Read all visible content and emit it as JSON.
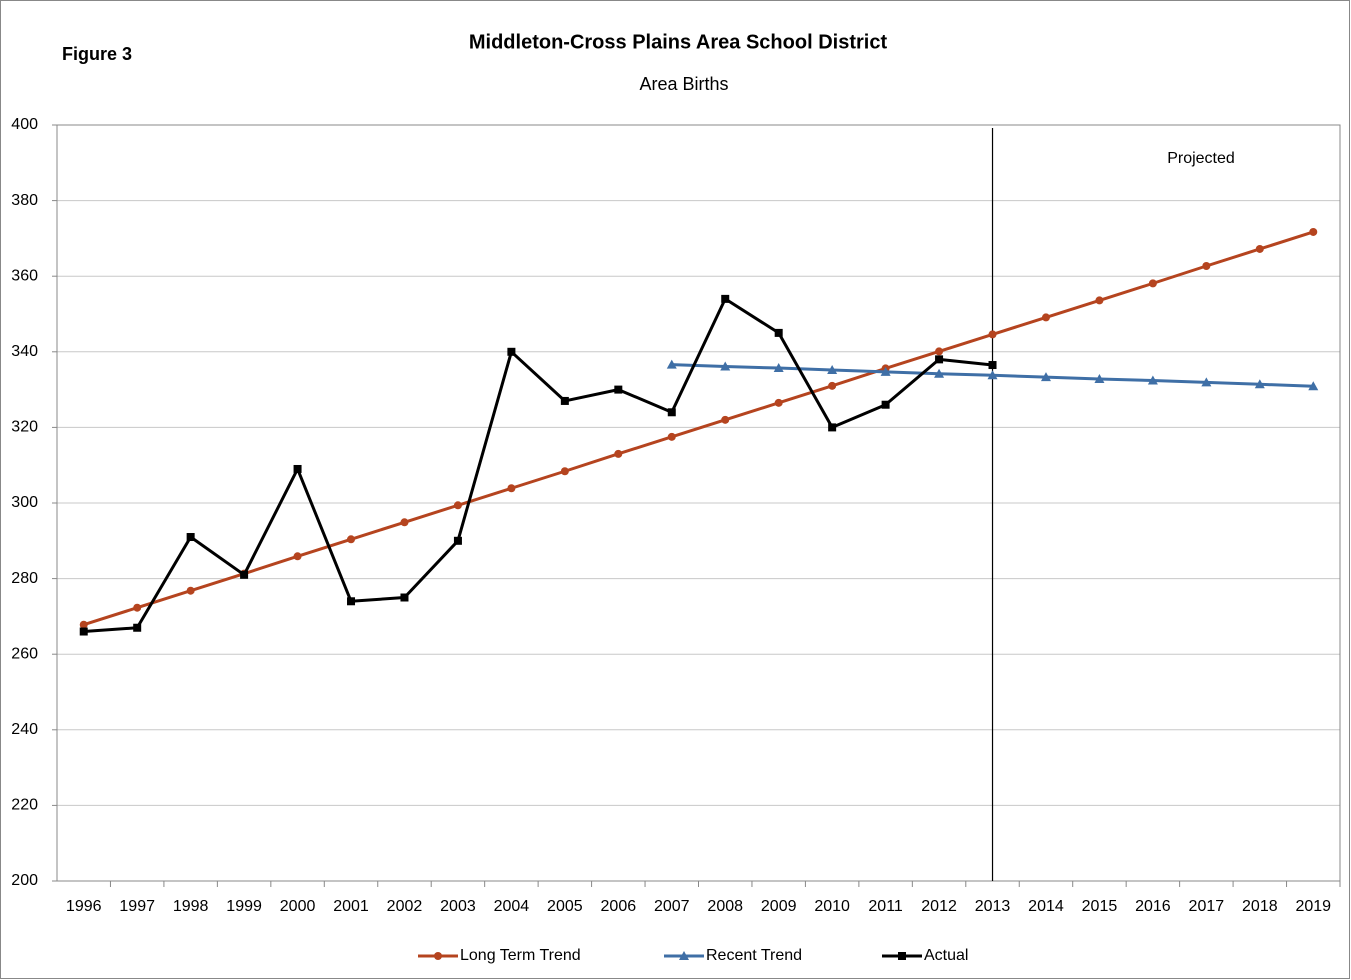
{
  "chart_data": {
    "type": "line",
    "figure_label": "Figure 3",
    "title": "Middleton-Cross Plains Area School District",
    "subtitle": "Area Births",
    "categories": [
      "1996",
      "1997",
      "1998",
      "1999",
      "2000",
      "2001",
      "2002",
      "2003",
      "2004",
      "2005",
      "2006",
      "2007",
      "2008",
      "2009",
      "2010",
      "2011",
      "2012",
      "2013",
      "2014",
      "2015",
      "2016",
      "2017",
      "2018",
      "2019"
    ],
    "series": [
      {
        "name": "Long Term Trend",
        "color": "#b5441f",
        "marker": "circle",
        "values": [
          267.8,
          272.3,
          276.8,
          281.3,
          285.9,
          290.4,
          294.9,
          299.4,
          303.9,
          308.4,
          313.0,
          317.5,
          322.0,
          326.5,
          331.0,
          335.6,
          340.1,
          344.6,
          349.1,
          353.6,
          358.1,
          362.7,
          367.2,
          371.7
        ]
      },
      {
        "name": "Recent Trend",
        "color": "#3f6fa6",
        "marker": "triangle",
        "values": [
          null,
          null,
          null,
          null,
          null,
          null,
          null,
          null,
          null,
          null,
          null,
          336.6,
          336.1,
          335.7,
          335.2,
          334.7,
          334.2,
          333.8,
          333.3,
          332.8,
          332.4,
          331.9,
          331.4,
          330.9
        ]
      },
      {
        "name": "Actual",
        "color": "#000000",
        "marker": "square",
        "values": [
          266,
          267,
          291,
          281,
          309,
          274,
          275,
          290,
          340,
          327,
          330,
          324,
          354,
          345,
          320,
          326,
          338,
          336.5,
          null,
          null,
          null,
          null,
          null,
          null
        ]
      }
    ],
    "ylim": [
      200,
      400
    ],
    "yticks": [
      200,
      220,
      240,
      260,
      280,
      300,
      320,
      340,
      360,
      380,
      400
    ],
    "grid": true,
    "legend": "bottom",
    "annotation": {
      "text": "Projected",
      "category": "2013"
    }
  }
}
